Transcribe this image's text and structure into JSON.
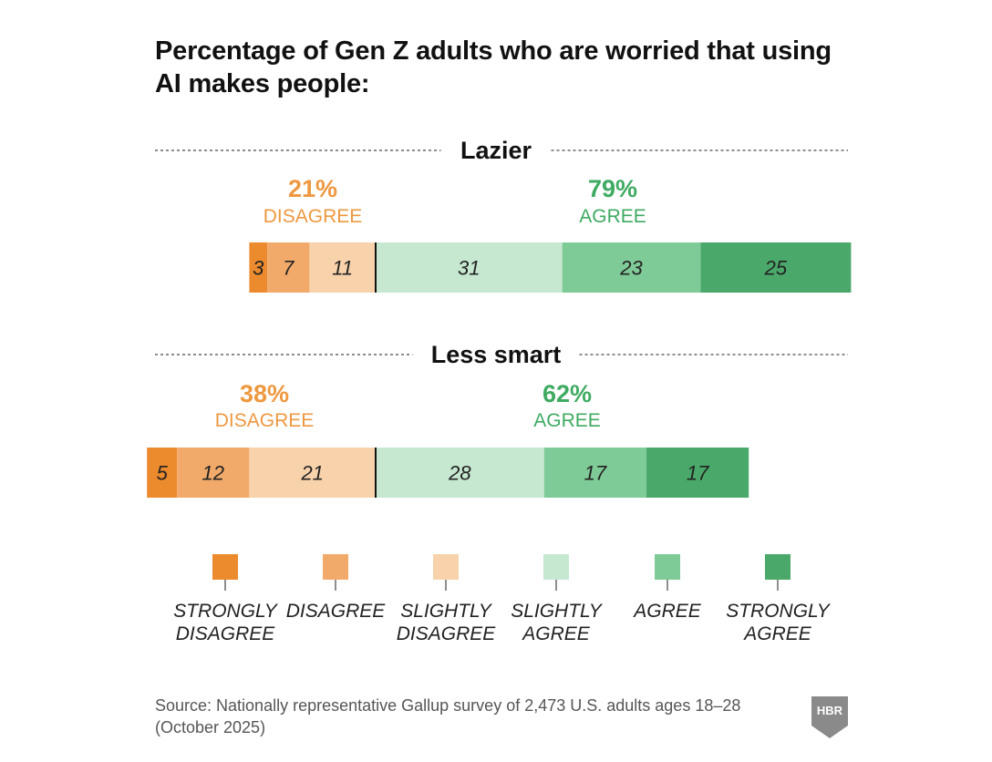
{
  "title": "Percentage of Gen Z adults who are worried that using AI makes people:",
  "source": "Source: Nationally representative Gallup survey of 2,473 U.S. adults ages 18–28 (October 2025)",
  "logo": {
    "text": "HBR",
    "icon": "hbr-shield-logo"
  },
  "colors": {
    "strongly_disagree": "#ec8a2e",
    "disagree": "#f2aa6a",
    "slightly_disagree": "#f8d2ab",
    "slightly_agree": "#c6e8d1",
    "agree": "#7fcb97",
    "strongly_agree": "#4aa96a",
    "disagree_text": "#ee9840",
    "agree_text": "#3faa62"
  },
  "chart_data": {
    "type": "bar",
    "orientation": "horizontal-stacked-diverging",
    "categories": [
      "Lazier",
      "Less smart"
    ],
    "series": [
      {
        "name": "STRONGLY DISAGREE",
        "values": [
          3,
          5
        ]
      },
      {
        "name": "DISAGREE",
        "values": [
          7,
          12
        ]
      },
      {
        "name": "SLIGHTLY DISAGREE",
        "values": [
          11,
          21
        ]
      },
      {
        "name": "SLIGHTLY AGREE",
        "values": [
          31,
          28
        ]
      },
      {
        "name": "AGREE",
        "values": [
          23,
          17
        ]
      },
      {
        "name": "STRONGLY AGREE",
        "values": [
          25,
          17
        ]
      }
    ],
    "totals": [
      {
        "disagree_pct": "21%",
        "disagree_label": "DISAGREE",
        "agree_pct": "79%",
        "agree_label": "AGREE"
      },
      {
        "disagree_pct": "38%",
        "disagree_label": "DISAGREE",
        "agree_pct": "62%",
        "agree_label": "AGREE"
      }
    ],
    "legend": {
      "position": "bottom",
      "entries": [
        [
          "STRONGLY",
          "DISAGREE"
        ],
        [
          "DISAGREE"
        ],
        [
          "SLIGHTLY",
          "DISAGREE"
        ],
        [
          "SLIGHTLY",
          "AGREE"
        ],
        [
          "AGREE"
        ],
        [
          "STRONGLY",
          "AGREE"
        ]
      ]
    },
    "grid": false
  }
}
